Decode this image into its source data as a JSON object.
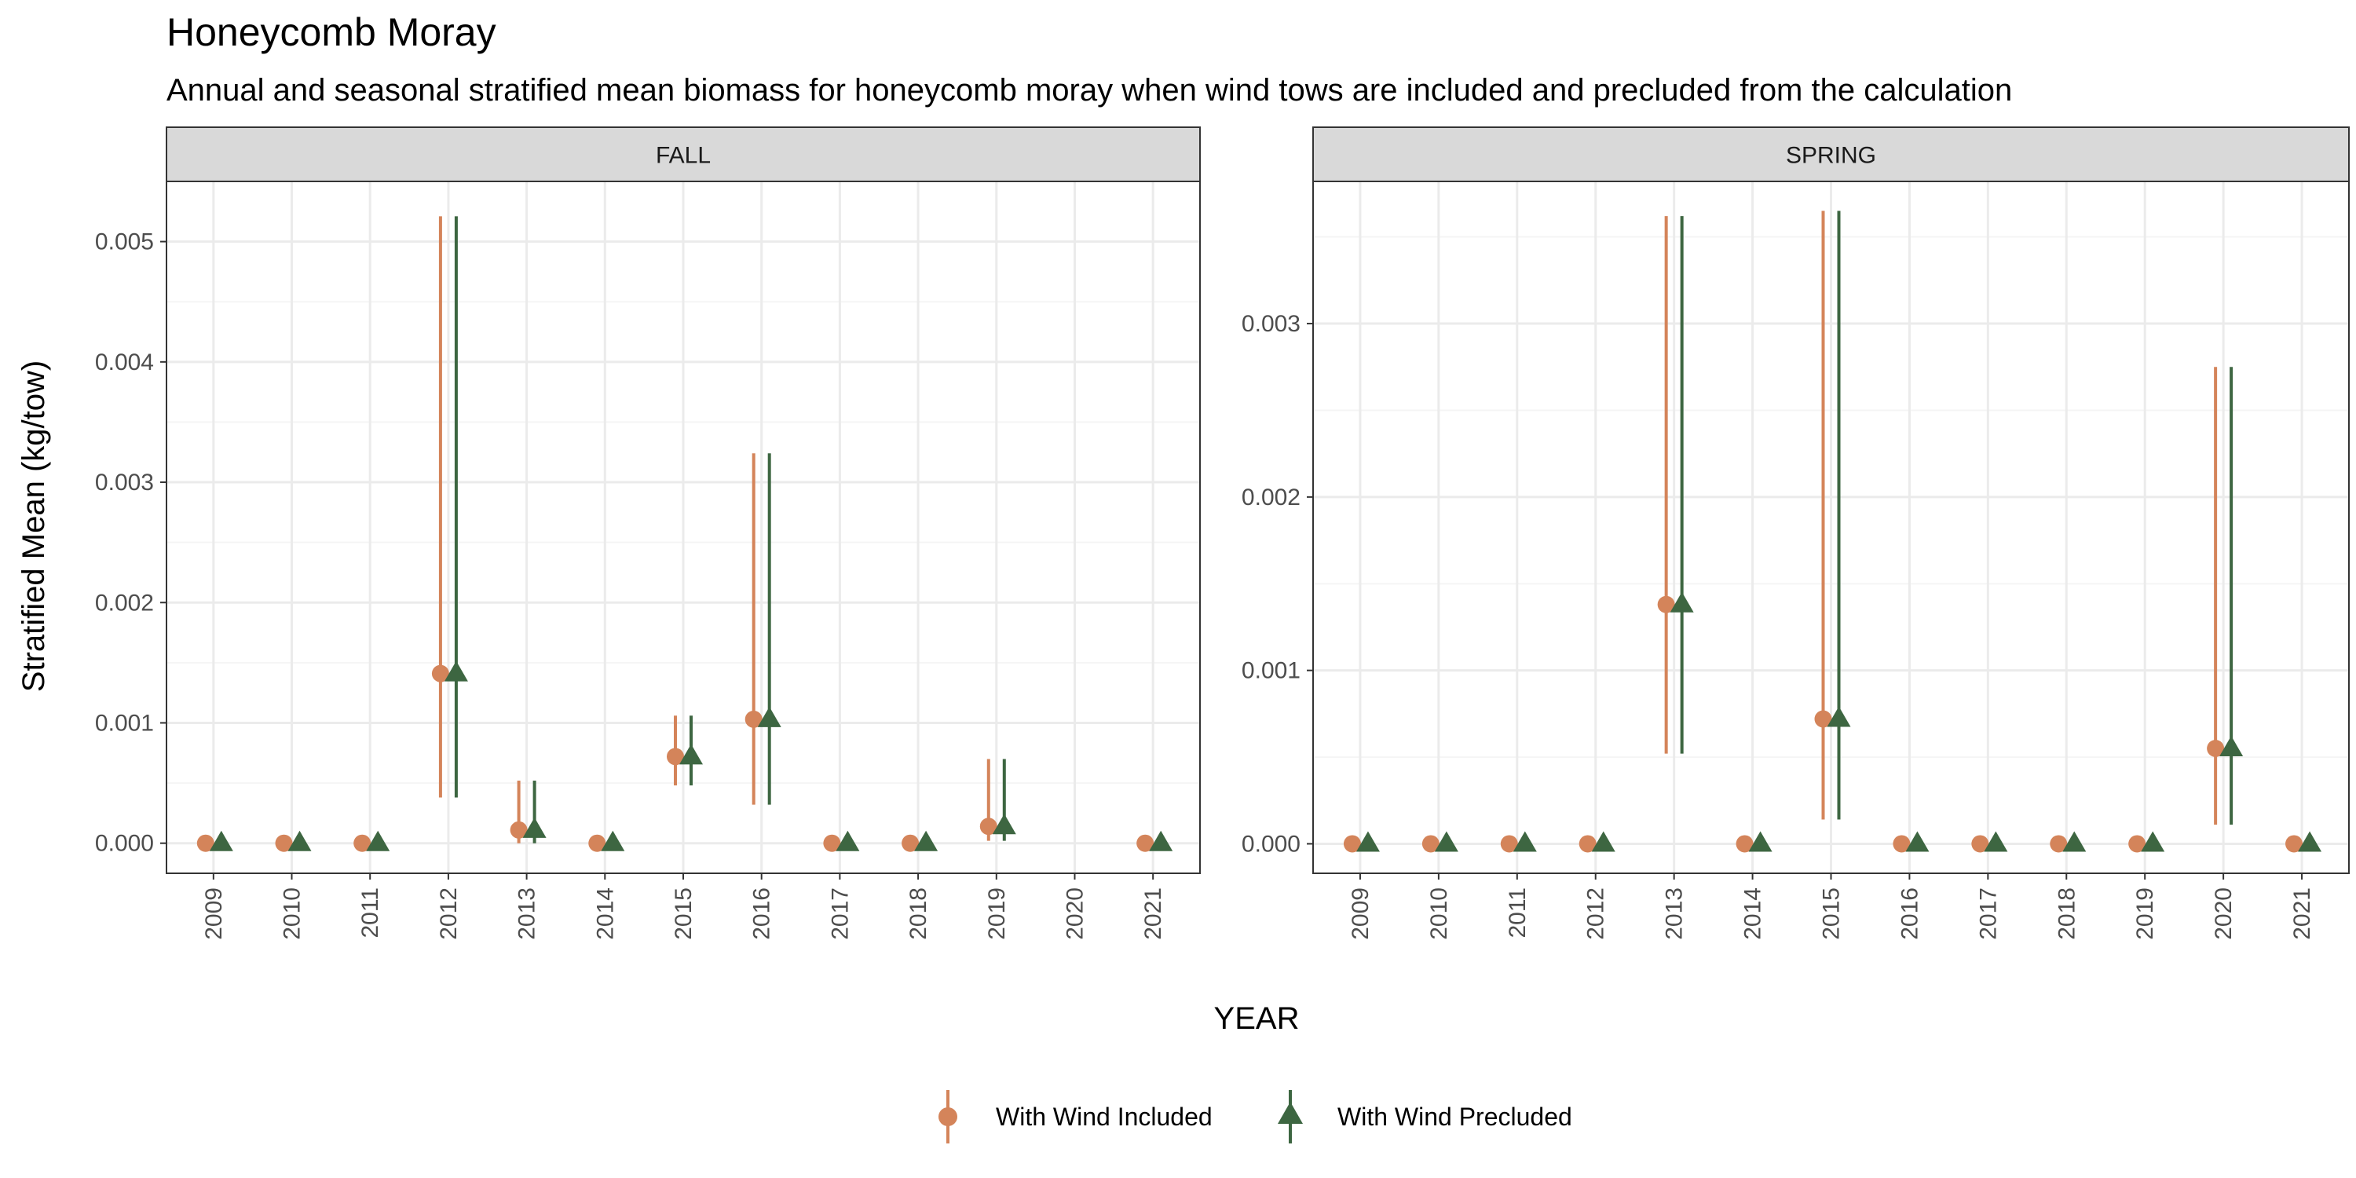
{
  "colors": {
    "included": "#D4845A",
    "precluded": "#3D6641",
    "strip_fill": "#D9D9D9",
    "panel_border": "#333333",
    "grid_major": "#EBEBEB",
    "grid_minor": "#F5F5F5",
    "tick_text": "#4D4D4D"
  },
  "chart_data": {
    "type": "scatter",
    "title": "Honeycomb Moray",
    "subtitle": "Annual and seasonal stratified mean biomass for honeycomb moray when wind tows are included and precluded from the calculation",
    "xlabel": "YEAR",
    "ylabel": "Stratified Mean (kg/tow)",
    "grid": true,
    "legend_position": "bottom",
    "legend": [
      {
        "key": "included",
        "label": "With Wind Included",
        "marker": "circle"
      },
      {
        "key": "precluded",
        "label": "With Wind Precluded",
        "marker": "triangle"
      }
    ],
    "panels": [
      {
        "name": "FALL",
        "ylim": [
          -0.00025,
          0.0055
        ],
        "yticks": [
          0,
          0.001,
          0.002,
          0.003,
          0.004,
          0.005
        ],
        "ytick_labels": [
          "0.000",
          "0.001",
          "0.002",
          "0.003",
          "0.004",
          "0.005"
        ],
        "categories": [
          "2009",
          "2010",
          "2011",
          "2012",
          "2013",
          "2014",
          "2015",
          "2016",
          "2017",
          "2018",
          "2019",
          "2020",
          "2021"
        ],
        "series": [
          {
            "key": "included",
            "name": "With Wind Included",
            "values": [
              0,
              0,
              0,
              0.00141,
              0.00011,
              0,
              0.00072,
              0.00103,
              0,
              0,
              0.00014,
              null,
              0
            ],
            "lower": [
              0,
              0,
              0,
              0.00038,
              0,
              0,
              0.00048,
              0.00032,
              0,
              0,
              2e-05,
              null,
              0
            ],
            "upper": [
              0,
              0,
              0,
              0.00521,
              0.00052,
              0,
              0.00106,
              0.00324,
              0,
              0,
              0.0007,
              null,
              0
            ]
          },
          {
            "key": "precluded",
            "name": "With Wind Precluded",
            "values": [
              0,
              0,
              0,
              0.00141,
              0.00011,
              0,
              0.00072,
              0.00103,
              0,
              0,
              0.00014,
              null,
              0
            ],
            "lower": [
              0,
              0,
              0,
              0.00038,
              0,
              0,
              0.00048,
              0.00032,
              0,
              0,
              2e-05,
              null,
              0
            ],
            "upper": [
              0,
              0,
              0,
              0.00521,
              0.00052,
              0,
              0.00106,
              0.00324,
              0,
              0,
              0.0007,
              null,
              0
            ]
          }
        ]
      },
      {
        "name": "SPRING",
        "ylim": [
          -0.00017,
          0.00382
        ],
        "yticks": [
          0,
          0.001,
          0.002,
          0.003
        ],
        "ytick_labels": [
          "0.000",
          "0.001",
          "0.002",
          "0.003"
        ],
        "categories": [
          "2009",
          "2010",
          "2011",
          "2012",
          "2013",
          "2014",
          "2015",
          "2016",
          "2017",
          "2018",
          "2019",
          "2020",
          "2021"
        ],
        "series": [
          {
            "key": "included",
            "name": "With Wind Included",
            "values": [
              0,
              0,
              0,
              0,
              0.00138,
              0,
              0.00072,
              0,
              0,
              0,
              0,
              0.00055,
              0
            ],
            "lower": [
              0,
              0,
              0,
              0,
              0.00052,
              0,
              0.00014,
              0,
              0,
              0,
              0,
              0.00011,
              0
            ],
            "upper": [
              0,
              0,
              0,
              0,
              0.00362,
              0,
              0.00365,
              0,
              0,
              0,
              0,
              0.00275,
              0
            ]
          },
          {
            "key": "precluded",
            "name": "With Wind Precluded",
            "values": [
              0,
              0,
              0,
              0,
              0.00138,
              0,
              0.00072,
              0,
              0,
              0,
              0,
              0.00055,
              0
            ],
            "lower": [
              0,
              0,
              0,
              0,
              0.00052,
              0,
              0.00014,
              0,
              0,
              0,
              0,
              0.00011,
              0
            ],
            "upper": [
              0,
              0,
              0,
              0,
              0.00362,
              0,
              0.00365,
              0,
              0,
              0,
              0,
              0.00275,
              0
            ]
          }
        ]
      }
    ]
  }
}
